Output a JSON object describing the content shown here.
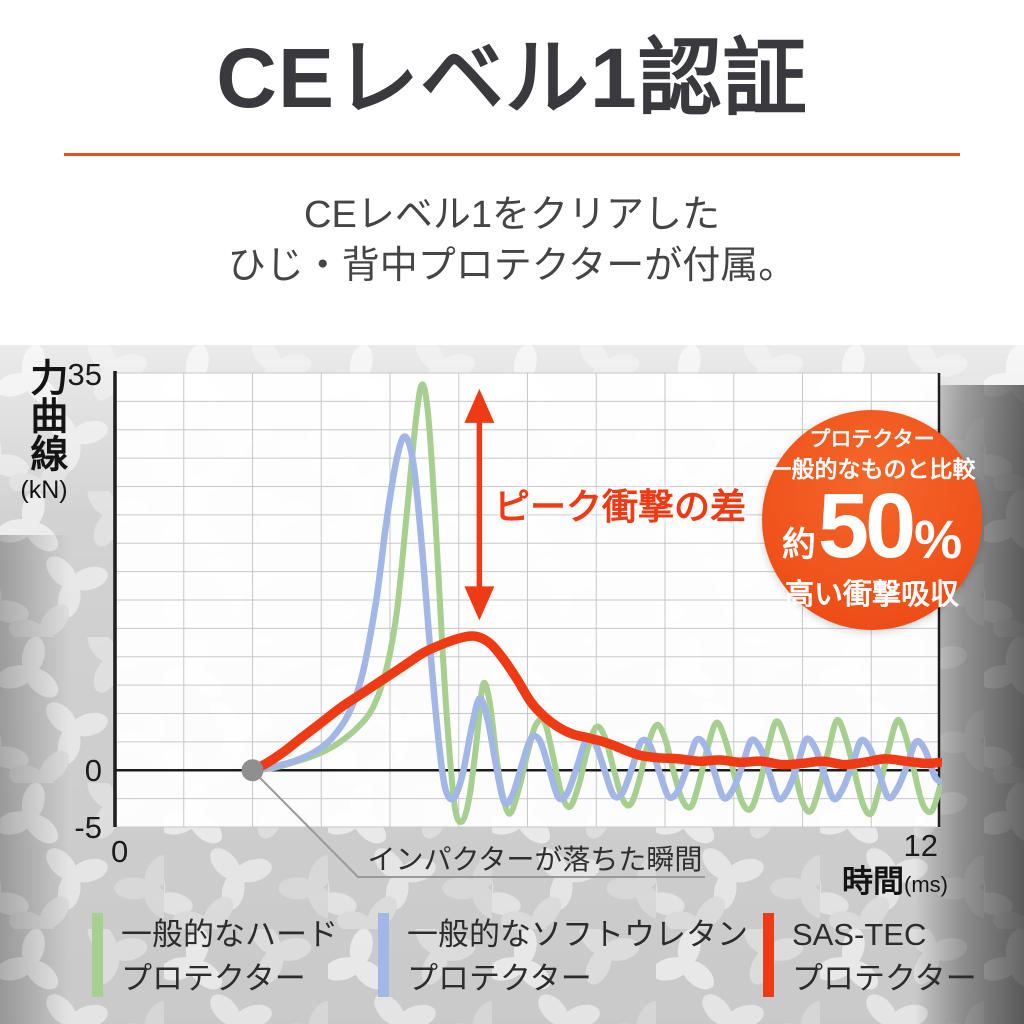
{
  "header": {
    "title": "CEレベル1認証",
    "subtitle_line1": "CEレベル1をクリアした",
    "subtitle_line2": "ひじ・背中プロテクターが付属。"
  },
  "theme": {
    "divider_color": "#e8511b",
    "accent_red": "#ee3b15",
    "grid_color": "#c8c8c8",
    "axis_color": "#1d1d1d"
  },
  "chart_data": {
    "type": "line",
    "title": "",
    "ylabel": "力曲線",
    "y_unit_label": "(kN)",
    "xlabel": "時間",
    "x_unit_label": "(ms)",
    "xlim": [
      0,
      12
    ],
    "ylim": [
      -5,
      35
    ],
    "grid": true,
    "x_grid_step_ms": 1,
    "y_grid_step_kN": 2.5,
    "legend_position": "bottom",
    "y_ticks": [
      {
        "value": 35,
        "label": "35"
      },
      {
        "value": 0,
        "label": "0"
      },
      {
        "value": -5,
        "label": "-5"
      }
    ],
    "x_ticks": [
      {
        "value": 0,
        "label": "0"
      },
      {
        "value": 12,
        "label": "12"
      }
    ],
    "impact": {
      "t_ms": 2,
      "f_kN": 0,
      "label": "インパクターが落ちた瞬間"
    },
    "peak_gap": {
      "label": "ピーク衝撃の差",
      "x_ms": 5.3,
      "from_kN": 33.6,
      "to_kN": 13.2,
      "color": "#ee3b15"
    },
    "series": [
      {
        "name": "一般的なハードプロテクター",
        "color": "#a6cf90",
        "stroke_width": 6,
        "peak_kN": 34,
        "points": [
          [
            2,
            0
          ],
          [
            2.3,
            0.2
          ],
          [
            2.6,
            0.7
          ],
          [
            2.9,
            1.3
          ],
          [
            3.2,
            2.2
          ],
          [
            3.5,
            3.6
          ],
          [
            3.75,
            5.5
          ],
          [
            3.95,
            9
          ],
          [
            4.1,
            14
          ],
          [
            4.25,
            23
          ],
          [
            4.38,
            31
          ],
          [
            4.47,
            34
          ],
          [
            4.56,
            31
          ],
          [
            4.66,
            22
          ],
          [
            4.76,
            11
          ],
          [
            4.86,
            2
          ],
          [
            4.95,
            -3.5
          ],
          [
            5.05,
            -4.5
          ],
          [
            5.15,
            -2.5
          ],
          [
            5.25,
            2
          ],
          [
            5.35,
            7.5
          ],
          [
            5.45,
            6
          ],
          [
            5.55,
            1
          ],
          [
            5.65,
            -2.5
          ],
          [
            5.75,
            -3.8
          ],
          [
            5.88,
            -1.5
          ],
          [
            6,
            1.5
          ],
          [
            6.12,
            4
          ],
          [
            6.25,
            4.2
          ],
          [
            6.38,
            1
          ],
          [
            6.5,
            -2.2
          ],
          [
            6.62,
            -3.2
          ],
          [
            6.75,
            -1.2
          ],
          [
            6.88,
            2
          ],
          [
            7,
            3.8
          ],
          [
            7.12,
            3
          ],
          [
            7.25,
            0.2
          ],
          [
            7.38,
            -2.5
          ],
          [
            7.5,
            -3
          ],
          [
            7.62,
            -1
          ],
          [
            7.75,
            2.2
          ],
          [
            7.88,
            4
          ],
          [
            8,
            2.8
          ],
          [
            8.12,
            0
          ],
          [
            8.25,
            -2.6
          ],
          [
            8.38,
            -3.2
          ],
          [
            8.5,
            -1
          ],
          [
            8.62,
            2
          ],
          [
            8.75,
            4.2
          ],
          [
            8.88,
            2.6
          ],
          [
            9,
            -0.2
          ],
          [
            9.12,
            -2.8
          ],
          [
            9.25,
            -3.4
          ],
          [
            9.38,
            -1.2
          ],
          [
            9.5,
            2
          ],
          [
            9.62,
            4.3
          ],
          [
            9.75,
            2.8
          ],
          [
            9.88,
            0
          ],
          [
            10,
            -2.8
          ],
          [
            10.12,
            -3.6
          ],
          [
            10.25,
            -1.4
          ],
          [
            10.38,
            1.8
          ],
          [
            10.5,
            4.4
          ],
          [
            10.62,
            3
          ],
          [
            10.75,
            0
          ],
          [
            10.88,
            -3
          ],
          [
            11,
            -3.8
          ],
          [
            11.12,
            -1.5
          ],
          [
            11.25,
            1.8
          ],
          [
            11.38,
            4.4
          ],
          [
            11.5,
            3
          ],
          [
            11.62,
            0
          ],
          [
            11.75,
            -3
          ],
          [
            11.88,
            -3.6
          ],
          [
            12,
            -1.5
          ]
        ]
      },
      {
        "name": "一般的なソフトウレタンプロテクター",
        "color": "#a3b7e6",
        "stroke_width": 6.5,
        "peak_kN": 29.4,
        "points": [
          [
            2,
            0
          ],
          [
            2.3,
            0.3
          ],
          [
            2.6,
            0.8
          ],
          [
            2.9,
            1.6
          ],
          [
            3.15,
            2.8
          ],
          [
            3.4,
            5
          ],
          [
            3.6,
            8.5
          ],
          [
            3.8,
            15
          ],
          [
            3.95,
            22
          ],
          [
            4.1,
            27.5
          ],
          [
            4.22,
            29.4
          ],
          [
            4.34,
            27
          ],
          [
            4.46,
            20
          ],
          [
            4.58,
            11
          ],
          [
            4.7,
            3
          ],
          [
            4.8,
            -1.5
          ],
          [
            4.92,
            -2.5
          ],
          [
            5.05,
            -0.5
          ],
          [
            5.18,
            3.5
          ],
          [
            5.3,
            6.3
          ],
          [
            5.42,
            4.5
          ],
          [
            5.54,
            0.5
          ],
          [
            5.66,
            -2.8
          ],
          [
            5.78,
            -2.2
          ],
          [
            5.92,
            0.5
          ],
          [
            6.05,
            2.8
          ],
          [
            6.18,
            2.6
          ],
          [
            6.32,
            0
          ],
          [
            6.45,
            -2.4
          ],
          [
            6.58,
            -2
          ],
          [
            6.72,
            0.3
          ],
          [
            6.85,
            2.6
          ],
          [
            6.98,
            2.4
          ],
          [
            7.12,
            0
          ],
          [
            7.25,
            -2.2
          ],
          [
            7.38,
            -2
          ],
          [
            7.52,
            0.2
          ],
          [
            7.65,
            2.5
          ],
          [
            7.78,
            2.2
          ],
          [
            7.92,
            -0.2
          ],
          [
            8.05,
            -2.3
          ],
          [
            8.18,
            -1.9
          ],
          [
            8.32,
            0.2
          ],
          [
            8.45,
            2.6
          ],
          [
            8.58,
            2.2
          ],
          [
            8.72,
            -0.2
          ],
          [
            8.85,
            -2.4
          ],
          [
            8.98,
            -1.8
          ],
          [
            9.12,
            0.3
          ],
          [
            9.25,
            2.6
          ],
          [
            9.38,
            2
          ],
          [
            9.52,
            -0.3
          ],
          [
            9.65,
            -2.5
          ],
          [
            9.78,
            -1.8
          ],
          [
            9.92,
            0.3
          ],
          [
            10.05,
            2.7
          ],
          [
            10.18,
            2
          ],
          [
            10.32,
            -0.4
          ],
          [
            10.45,
            -2.5
          ],
          [
            10.58,
            -1.7
          ],
          [
            10.72,
            0.4
          ],
          [
            10.85,
            2.6
          ],
          [
            10.98,
            1.9
          ],
          [
            11.12,
            -0.4
          ],
          [
            11.25,
            -2.4
          ],
          [
            11.38,
            -1.6
          ],
          [
            11.52,
            0.4
          ],
          [
            11.65,
            2.5
          ],
          [
            11.78,
            1.8
          ],
          [
            11.92,
            -0.5
          ],
          [
            12,
            -1
          ]
        ]
      },
      {
        "name": "SAS-TECプロテクター",
        "color": "#ee3b15",
        "stroke_width": 9.5,
        "peak_kN": 11.8,
        "points": [
          [
            2,
            0
          ],
          [
            2.2,
            0.6
          ],
          [
            2.45,
            1.6
          ],
          [
            2.7,
            2.8
          ],
          [
            3,
            4.2
          ],
          [
            3.3,
            5.6
          ],
          [
            3.6,
            6.8
          ],
          [
            3.9,
            8
          ],
          [
            4.2,
            9.2
          ],
          [
            4.5,
            10.4
          ],
          [
            4.8,
            11.2
          ],
          [
            5.05,
            11.7
          ],
          [
            5.25,
            11.8
          ],
          [
            5.45,
            11.2
          ],
          [
            5.65,
            9.8
          ],
          [
            5.85,
            8
          ],
          [
            6.05,
            6
          ],
          [
            6.25,
            4.7
          ],
          [
            6.45,
            3.8
          ],
          [
            6.65,
            3.2
          ],
          [
            6.85,
            2.9
          ],
          [
            7.05,
            2.6
          ],
          [
            7.25,
            2.2
          ],
          [
            7.45,
            1.7
          ],
          [
            7.65,
            1.3
          ],
          [
            7.9,
            1.1
          ],
          [
            8.2,
            1
          ],
          [
            8.5,
            0.8
          ],
          [
            8.8,
            0.9
          ],
          [
            9.1,
            0.7
          ],
          [
            9.4,
            0.8
          ],
          [
            9.7,
            0.5
          ],
          [
            10,
            0.6
          ],
          [
            10.3,
            0.8
          ],
          [
            10.6,
            0.5
          ],
          [
            10.9,
            0.7
          ],
          [
            11.2,
            1
          ],
          [
            11.5,
            0.8
          ],
          [
            11.8,
            0.6
          ],
          [
            12,
            0.7
          ]
        ]
      }
    ]
  },
  "badge": {
    "top_line": "プロテクター",
    "second_line": "一般的なものと比較",
    "prefix": "約",
    "value": "50",
    "unit": "%",
    "bottom_line": "高い衝撃吸収",
    "bg_color": "#f0551e",
    "text_color": "#ffffff"
  },
  "legend": {
    "items": [
      {
        "lines": [
          "一般的なハード",
          "プロテクター"
        ],
        "color": "#a6cf90"
      },
      {
        "lines": [
          "一般的なソフトウレタン",
          "プロテクター"
        ],
        "color": "#a3b7e6"
      },
      {
        "lines": [
          "SAS-TEC",
          "プロテクター"
        ],
        "color": "#ee3b15"
      }
    ]
  }
}
